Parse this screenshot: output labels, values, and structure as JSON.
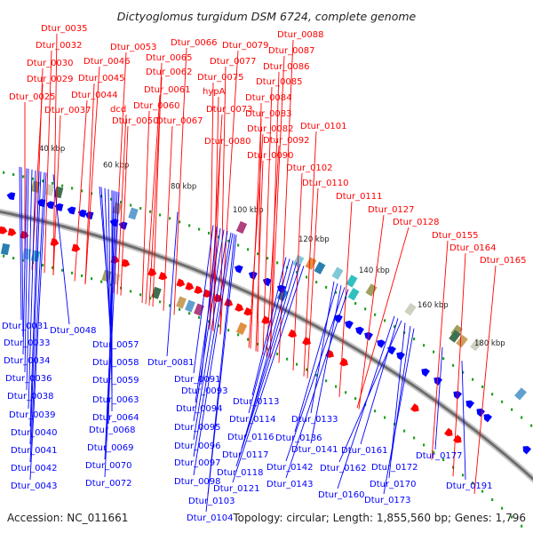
{
  "title": "Dictyoglomus turgidum DSM 6724, complete genome",
  "footer": {
    "accession": "Accession: NC_011661",
    "summary": "Topology: circular; Length: 1,855,560 bp; Genes: 1,796"
  },
  "colors": {
    "forward": "#ff0000",
    "reverse": "#0000ff",
    "backbone": "#808080",
    "tick": "#20a020"
  },
  "kbp_ticks": [
    "40 kbp",
    "60 kbp",
    "80 kbp",
    "100 kbp",
    "120 kbp",
    "140 kbp",
    "160 kbp",
    "180 kbp"
  ],
  "forward_labels": [
    "Dtur_0035",
    "Dtur_0032",
    "Dtur_0030",
    "Dtur_0029",
    "Dtur_0025",
    "Dtur_0037",
    "Dtur_0046",
    "Dtur_0045",
    "Dtur_0044",
    "dcd",
    "Dtur_0053",
    "Dtur_0050",
    "Dtur_0065",
    "Dtur_0062",
    "Dtur_0061",
    "Dtur_0060",
    "Dtur_0066",
    "Dtur_0067",
    "Dtur_0079",
    "Dtur_0077",
    "Dtur_0075",
    "hypA",
    "Dtur_0073",
    "Dtur_0080",
    "Dtur_0088",
    "Dtur_0087",
    "Dtur_0086",
    "Dtur_0085",
    "Dtur_0084",
    "Dtur_0083",
    "Dtur_0082",
    "Dtur_0092",
    "Dtur_0090",
    "Dtur_0101",
    "Dtur_0102",
    "Dtur_0110",
    "Dtur_0111",
    "Dtur_0127",
    "Dtur_0128",
    "Dtur_0155",
    "Dtur_0164",
    "Dtur_0165"
  ],
  "reverse_labels": [
    "Dtur_0031",
    "Dtur_0033",
    "Dtur_0034",
    "Dtur_0036",
    "Dtur_0038",
    "Dtur_0039",
    "Dtur_0040",
    "Dtur_0041",
    "Dtur_0042",
    "Dtur_0043",
    "Dtur_0048",
    "Dtur_0057",
    "Dtur_0058",
    "Dtur_0059",
    "Dtur_0063",
    "Dtur_0064",
    "Dtur_0068",
    "Dtur_0069",
    "Dtur_0070",
    "Dtur_0072",
    "Dtur_0081",
    "Dtur_0091",
    "Dtur_0093",
    "Dtur_0094",
    "Dtur_0095",
    "Dtur_0096",
    "Dtur_0097",
    "Dtur_0098",
    "Dtur_0103",
    "Dtur_0104",
    "Dtur_0113",
    "Dtur_0114",
    "Dtur_0116",
    "Dtur_0117",
    "Dtur_0118",
    "Dtur_0121",
    "Dtur_0133",
    "Dtur_0136",
    "Dtur_0141",
    "Dtur_0142",
    "Dtur_0143",
    "Dtur_0160",
    "Dtur_0161",
    "Dtur_0162",
    "Dtur_0170",
    "Dtur_0172",
    "Dtur_0173",
    "Dtur_0177",
    "Dtur_0191"
  ]
}
